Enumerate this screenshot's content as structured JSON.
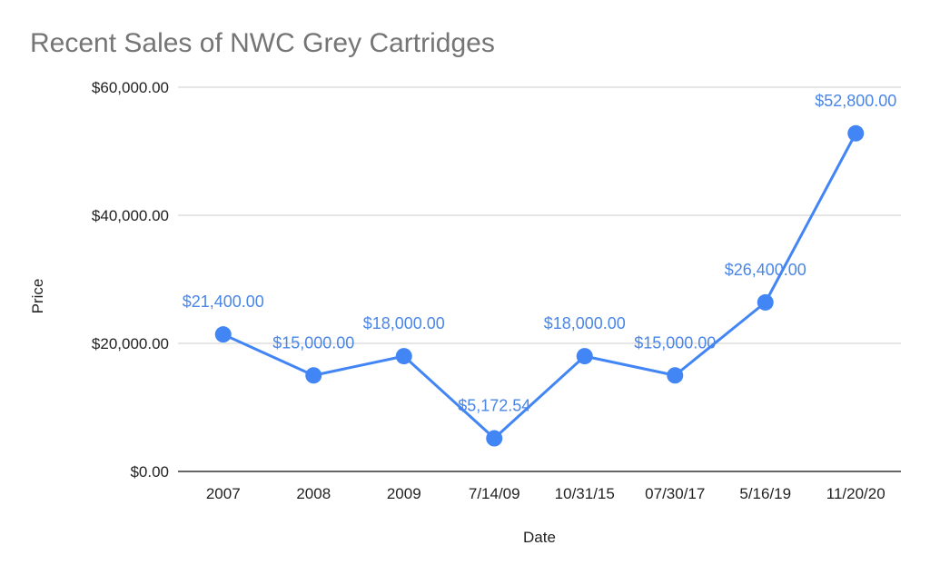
{
  "chart_data": {
    "type": "line",
    "title": "Recent Sales of NWC Grey Cartridges",
    "xlabel": "Date",
    "ylabel": "Price",
    "categories": [
      "2007",
      "2008",
      "2009",
      "7/14/09",
      "10/31/15",
      "07/30/17",
      "5/16/19",
      "11/20/20"
    ],
    "series": [
      {
        "values": [
          21400,
          15000,
          18000,
          5172.54,
          18000,
          15000,
          26400,
          52800
        ],
        "data_labels": [
          "$21,400.00",
          "$15,000.00",
          "$18,000.00",
          "$5,172.54",
          "$18,000.00",
          "$15,000.00",
          "$26,400.00",
          "$52,800.00"
        ],
        "color": "#4285f4"
      }
    ],
    "ylim": [
      0,
      60000
    ],
    "yticks": [
      0,
      20000,
      40000,
      60000
    ],
    "ytick_labels": [
      "$0.00",
      "$20,000.00",
      "$40,000.00",
      "$60,000.00"
    ],
    "grid": true,
    "label_color": "#4a86e8",
    "grid_color": "#cccccc",
    "axis_color": "#333333"
  }
}
